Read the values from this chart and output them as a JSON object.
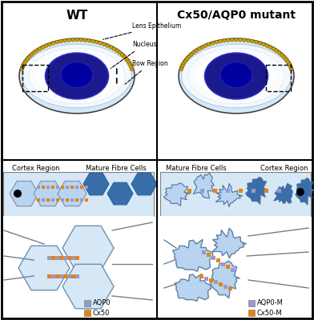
{
  "title_wt": "WT",
  "title_mutant": "Cx50/AQP0 mutant",
  "label_lens_epithelium": "Lens Epithelium",
  "label_nucleus": "Nucleus",
  "label_bow_region": "Bow Region",
  "label_cortex_region": "Cortex Region",
  "label_mature_fibre_cells": "Mature Fibre Cells",
  "legend_aqp0": "AQP0",
  "legend_cx50": "Cx50",
  "legend_aqp0m": "AQP0-M",
  "legend_cx50m": "Cx50-M",
  "color_bg": "#ffffff",
  "color_dark_blue": "#1a1a8c",
  "color_mid_blue": "#3333cc",
  "color_light_blue": "#adc8e6",
  "color_very_light_blue": "#d6e8f5",
  "color_gold": "#c8a200",
  "color_orange": "#e8820a",
  "color_purple_light": "#9999cc",
  "color_outline": "#444444",
  "color_black": "#000000",
  "color_white": "#ffffff",
  "color_hexagon_light": "#b8d4f0",
  "color_hexagon_dark": "#3a6ea8"
}
